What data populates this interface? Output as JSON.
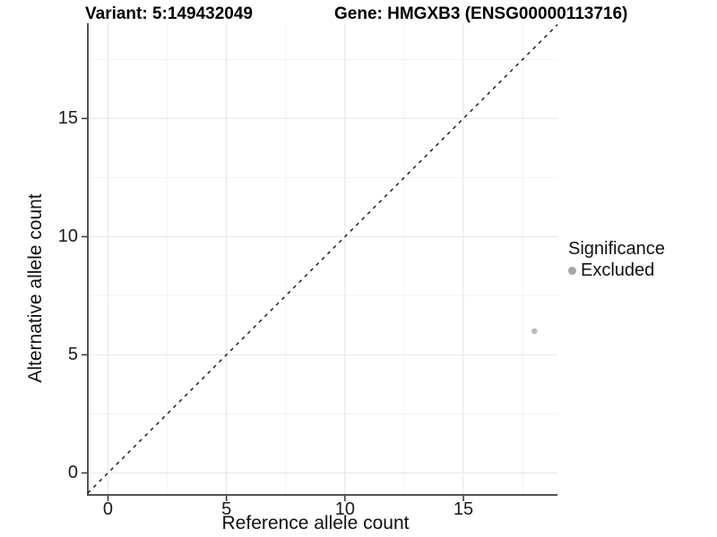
{
  "chart_data": {
    "type": "scatter",
    "titles": {
      "left": "Variant: 5:149432049",
      "right": "Gene: HMGXB3 (ENSG00000113716)"
    },
    "xlabel": "Reference allele count",
    "ylabel": "Alternative allele count",
    "x_ticks": [
      0,
      5,
      10,
      15
    ],
    "y_ticks": [
      0,
      5,
      10,
      15
    ],
    "x_tick_labels": [
      "0",
      "5",
      "10",
      "15"
    ],
    "y_tick_labels": [
      "0",
      "5",
      "10",
      "15"
    ],
    "xlim": [
      -0.85,
      18.97
    ],
    "ylim": [
      -0.93,
      19.03
    ],
    "grid": "major+minor",
    "minor_step": 2.5,
    "points": [
      {
        "x": 18,
        "y": 6,
        "significance": "Excluded"
      }
    ],
    "identity_line": {
      "slope": 1,
      "intercept": 0,
      "style": "dashed"
    },
    "legend": {
      "title": "Significance",
      "position": "right",
      "items": [
        {
          "label": "Excluded",
          "color": "#a6a6a6"
        }
      ]
    },
    "colors": {
      "point": "#bebebe",
      "grid_major": "#e8e8e8",
      "grid_minor": "#f3f3f3",
      "axis_line": "#545454",
      "tick": "#333333",
      "dashed_line": "#111111",
      "text": "#000000",
      "background": "#ffffff"
    }
  }
}
